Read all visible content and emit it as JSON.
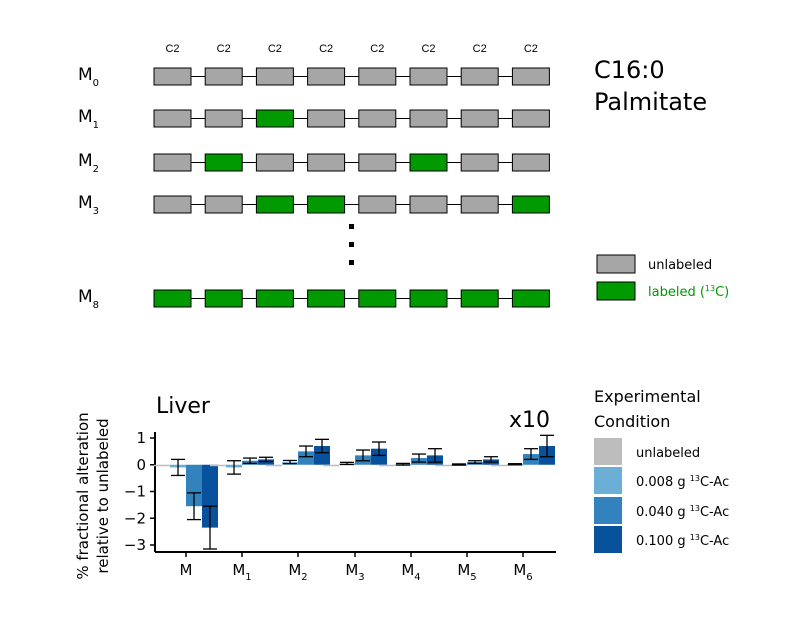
{
  "diagram": {
    "column_label": "C2",
    "column_count": 8,
    "rows": [
      {
        "label": "M",
        "sub": "0",
        "pattern": [
          0,
          0,
          0,
          0,
          0,
          0,
          0,
          0
        ]
      },
      {
        "label": "M",
        "sub": "1",
        "pattern": [
          0,
          0,
          1,
          0,
          0,
          0,
          0,
          0
        ]
      },
      {
        "label": "M",
        "sub": "2",
        "pattern": [
          0,
          1,
          0,
          0,
          0,
          1,
          0,
          0
        ]
      },
      {
        "label": "M",
        "sub": "3",
        "pattern": [
          0,
          0,
          1,
          1,
          0,
          0,
          0,
          1
        ]
      },
      {
        "label": "M",
        "sub": "8",
        "pattern": [
          1,
          1,
          1,
          1,
          1,
          1,
          1,
          1
        ]
      }
    ],
    "title_line1": "C16:0",
    "title_line2": "Palmitate",
    "legend": {
      "unlabeled": "unlabeled",
      "labeled_prefix": "labeled (",
      "labeled_sup": "13",
      "labeled_suffix": "C)"
    },
    "colors": {
      "unlabeled": "#a6a6a6",
      "labeled": "#009900",
      "labeled_text": "#009900"
    }
  },
  "chart_data": {
    "type": "bar",
    "title": "Liver",
    "annotation": "x10",
    "ylabel_line1": "% fractional alteration",
    "ylabel_line2": "relative to unlabeled",
    "ylim": [
      -3.3,
      1.2
    ],
    "yticks": [
      1,
      0,
      -1,
      -2,
      -3
    ],
    "ytick_labels": [
      "1",
      "0",
      "−1",
      "−2",
      "−3"
    ],
    "categories": [
      {
        "label": "M",
        "sub": ""
      },
      {
        "label": "M",
        "sub": "1"
      },
      {
        "label": "M",
        "sub": "2"
      },
      {
        "label": "M",
        "sub": "3"
      },
      {
        "label": "M",
        "sub": "4"
      },
      {
        "label": "M",
        "sub": "5"
      },
      {
        "label": "M",
        "sub": "6"
      }
    ],
    "series": [
      {
        "name": "unlabeled",
        "color": "#bdbdbd",
        "values": [
          0,
          0,
          0,
          0,
          0,
          0,
          0
        ],
        "errors": [
          0,
          0,
          0,
          0,
          0,
          0,
          0
        ]
      },
      {
        "name": "0.008 g",
        "suffix": "C-Ac",
        "sup": "13",
        "color": "#6baed6",
        "values": [
          -0.1,
          -0.1,
          0.1,
          0.05,
          0.02,
          0.01,
          0.02
        ],
        "errors": [
          0.3,
          0.25,
          0.06,
          0.04,
          0.03,
          0.02,
          0.02
        ]
      },
      {
        "name": "0.040 g",
        "suffix": "C-Ac",
        "sup": "13",
        "color": "#3182bd",
        "values": [
          -1.55,
          0.15,
          0.5,
          0.35,
          0.25,
          0.1,
          0.4
        ],
        "errors": [
          0.5,
          0.1,
          0.2,
          0.2,
          0.15,
          0.05,
          0.2
        ]
      },
      {
        "name": "0.100 g",
        "suffix": "C-Ac",
        "sup": "13",
        "color": "#08519c",
        "values": [
          -2.35,
          0.2,
          0.7,
          0.6,
          0.35,
          0.2,
          0.7
        ],
        "errors": [
          0.8,
          0.08,
          0.25,
          0.25,
          0.25,
          0.1,
          0.4
        ]
      }
    ],
    "legend": {
      "title_line1": "Experimental",
      "title_line2": "Condition",
      "placement": "right"
    }
  }
}
